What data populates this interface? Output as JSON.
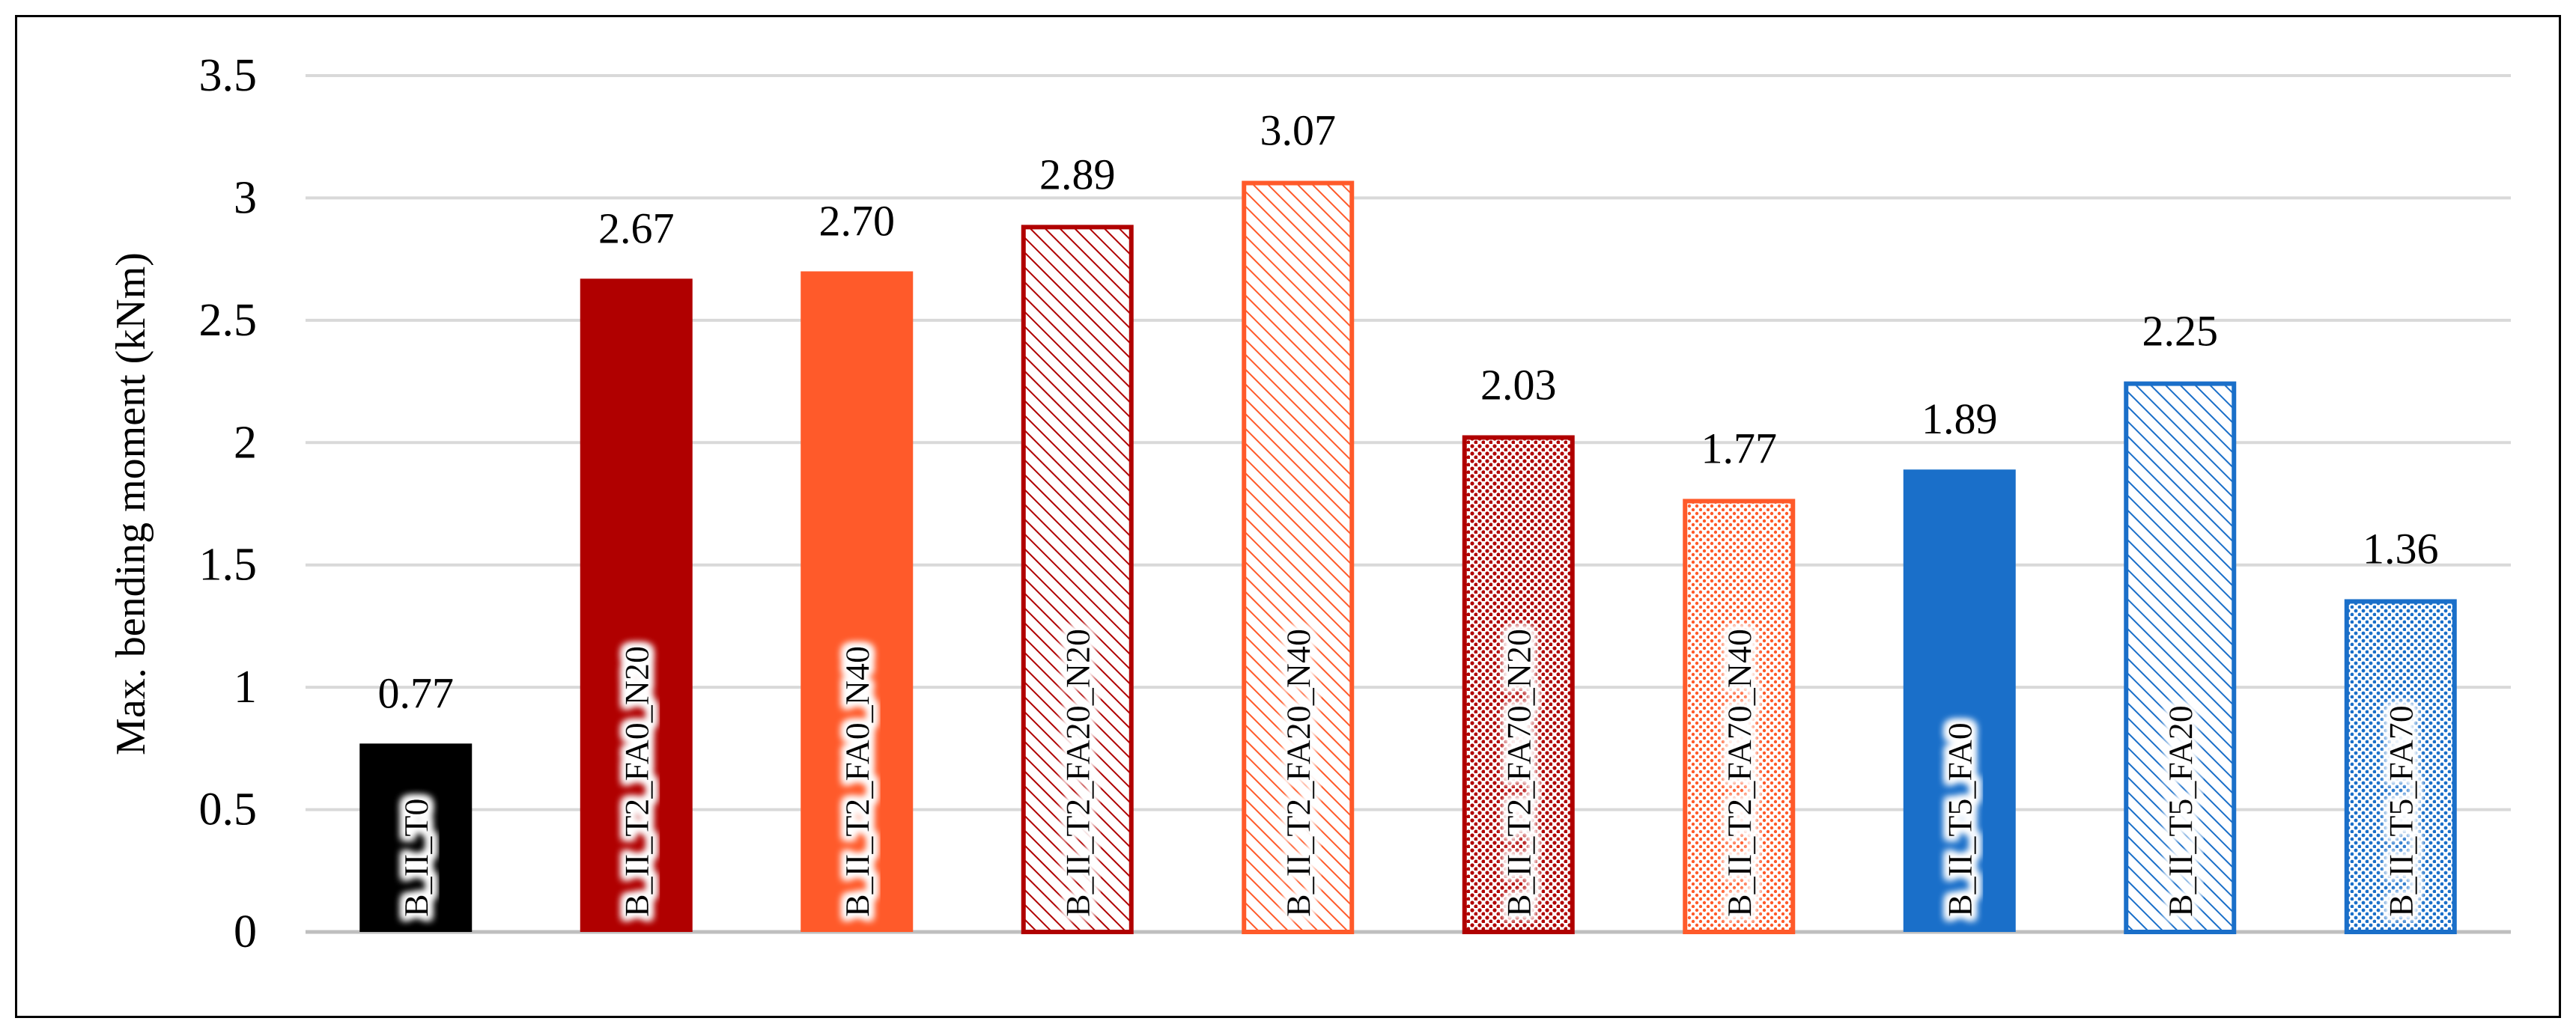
{
  "chart_data": {
    "type": "bar",
    "ylabel": "Max. bending moment (kNm)",
    "xlabel": "",
    "ylim": [
      0,
      3.5
    ],
    "yticks": [
      "0",
      "0.5",
      "1",
      "1.5",
      "2",
      "2.5",
      "3",
      "3.5"
    ],
    "grid": true,
    "categories": [
      "B_II_T0",
      "B_II_T2_FA0_N20",
      "B_II_T2_FA0_N40",
      "B_II_T2_FA20_N20",
      "B_II_T2_FA20_N40",
      "B_II_T2_FA70_N20",
      "B_II_T2_FA70_N40",
      "B_II_T5_FA0",
      "B_II_T5_FA20",
      "B_II_T5_FA70"
    ],
    "values": [
      0.77,
      2.67,
      2.7,
      2.89,
      3.07,
      2.03,
      1.77,
      1.89,
      2.25,
      1.36
    ],
    "value_labels": [
      "0.77",
      "2.67",
      "2.70",
      "2.89",
      "3.07",
      "2.03",
      "1.77",
      "1.89",
      "2.25",
      "1.36"
    ],
    "bar_colors": [
      "#000000",
      "#b00000",
      "#ff5a2a",
      "#b00000",
      "#ff5a2a",
      "#b00000",
      "#ff5a2a",
      "#1a6fc9",
      "#1a6fc9",
      "#1a6fc9"
    ],
    "bar_fills": [
      "solid",
      "solid",
      "solid",
      "hatch",
      "hatch",
      "dots",
      "dots",
      "solid",
      "hatch",
      "dots"
    ]
  }
}
